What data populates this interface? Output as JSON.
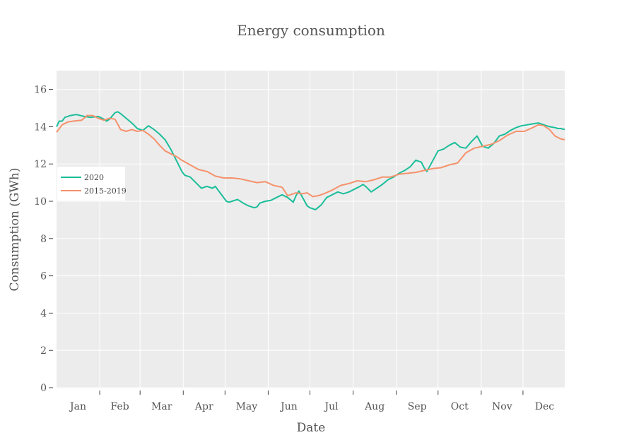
{
  "chart_data": {
    "type": "line",
    "title": "Energy consumption",
    "xlabel": "Date",
    "ylabel": "Consumption (GWh)",
    "ylim": [
      0,
      17
    ],
    "yticks": [
      0,
      2,
      4,
      6,
      8,
      10,
      12,
      14,
      16
    ],
    "xlim": [
      0,
      365
    ],
    "month_labels": [
      "Jan",
      "Feb",
      "Mar",
      "Apr",
      "May",
      "Jun",
      "Jul",
      "Aug",
      "Sep",
      "Oct",
      "Nov",
      "Dec"
    ],
    "grid": true,
    "legend": "left-middle",
    "series": [
      {
        "name": "2020",
        "color": "#1cbe9a",
        "x": [
          0,
          2,
          4,
          6,
          10,
          14,
          20,
          24,
          30,
          34,
          36,
          38,
          42,
          44,
          46,
          50,
          54,
          58,
          62,
          66,
          70,
          74,
          78,
          82,
          86,
          90,
          92,
          94,
          96,
          100,
          104,
          108,
          112,
          114,
          116,
          118,
          122,
          124,
          126,
          130,
          134,
          138,
          142,
          144,
          146,
          150,
          154,
          158,
          162,
          166,
          170,
          172,
          174,
          176,
          180,
          182,
          186,
          190,
          194,
          198,
          202,
          206,
          210,
          214,
          218,
          220,
          222,
          226,
          230,
          234,
          238,
          242,
          246,
          250,
          254,
          258,
          262,
          264,
          266,
          270,
          274,
          278,
          282,
          286,
          290,
          294,
          298,
          302,
          306,
          310,
          314,
          318,
          322,
          326,
          330,
          334,
          338,
          342,
          346,
          350,
          354,
          358,
          360,
          362,
          365
        ],
        "y": [
          14.0,
          14.3,
          14.3,
          14.5,
          14.6,
          14.65,
          14.55,
          14.5,
          14.55,
          14.4,
          14.3,
          14.4,
          14.75,
          14.8,
          14.7,
          14.45,
          14.2,
          13.9,
          13.8,
          14.05,
          13.85,
          13.6,
          13.3,
          12.8,
          12.2,
          11.6,
          11.4,
          11.35,
          11.3,
          11.0,
          10.7,
          10.8,
          10.7,
          10.8,
          10.6,
          10.4,
          10.0,
          9.95,
          10.0,
          10.1,
          9.9,
          9.75,
          9.65,
          9.7,
          9.9,
          10.0,
          10.05,
          10.2,
          10.35,
          10.2,
          9.95,
          10.3,
          10.55,
          10.3,
          9.75,
          9.65,
          9.55,
          9.8,
          10.2,
          10.35,
          10.5,
          10.4,
          10.5,
          10.65,
          10.8,
          10.9,
          10.8,
          10.5,
          10.7,
          10.9,
          11.15,
          11.3,
          11.5,
          11.65,
          11.85,
          12.2,
          12.1,
          11.8,
          11.6,
          12.15,
          12.7,
          12.8,
          13.0,
          13.15,
          12.9,
          12.85,
          13.2,
          13.5,
          12.95,
          12.85,
          13.1,
          13.5,
          13.6,
          13.8,
          13.95,
          14.05,
          14.1,
          14.15,
          14.2,
          14.1,
          14.0,
          13.95,
          13.9,
          13.9,
          13.85
        ],
        "x_override": true
      },
      {
        "name": "2015-2019",
        "color": "#f5926c",
        "x": [
          0,
          4,
          8,
          12,
          18,
          22,
          26,
          30,
          34,
          38,
          42,
          46,
          50,
          54,
          58,
          62,
          66,
          70,
          74,
          78,
          82,
          86,
          90,
          96,
          102,
          108,
          114,
          120,
          126,
          132,
          138,
          144,
          150,
          156,
          162,
          166,
          168,
          172,
          176,
          180,
          184,
          188,
          192,
          198,
          204,
          210,
          216,
          222,
          228,
          234,
          240,
          246,
          252,
          258,
          264,
          270,
          276,
          282,
          288,
          294,
          300,
          306,
          312,
          318,
          324,
          330,
          336,
          342,
          346,
          350,
          354,
          358,
          362,
          365
        ],
        "y": [
          13.7,
          14.1,
          14.25,
          14.3,
          14.35,
          14.6,
          14.6,
          14.45,
          14.35,
          14.45,
          14.4,
          13.85,
          13.75,
          13.85,
          13.75,
          13.8,
          13.6,
          13.35,
          13.0,
          12.7,
          12.55,
          12.4,
          12.2,
          11.95,
          11.7,
          11.6,
          11.35,
          11.25,
          11.25,
          11.2,
          11.1,
          11.0,
          11.05,
          10.85,
          10.75,
          10.3,
          10.35,
          10.45,
          10.4,
          10.45,
          10.25,
          10.3,
          10.4,
          10.6,
          10.85,
          10.95,
          11.1,
          11.05,
          11.15,
          11.3,
          11.3,
          11.45,
          11.5,
          11.55,
          11.65,
          11.75,
          11.8,
          11.95,
          12.05,
          12.6,
          12.85,
          12.95,
          13.05,
          13.25,
          13.55,
          13.75,
          13.75,
          13.95,
          14.1,
          14.05,
          13.85,
          13.5,
          13.35,
          13.3
        ],
        "x_override": true
      }
    ]
  }
}
